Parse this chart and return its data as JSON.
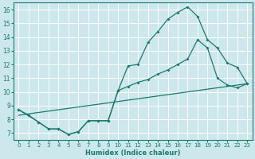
{
  "xlabel": "Humidex (Indice chaleur)",
  "bg_color": "#cce8ec",
  "grid_color": "#ffffff",
  "line_color": "#1a7a6e",
  "xlim": [
    -0.5,
    23.5
  ],
  "ylim": [
    6.5,
    16.5
  ],
  "xticks": [
    0,
    1,
    2,
    3,
    4,
    5,
    6,
    7,
    8,
    9,
    10,
    11,
    12,
    13,
    14,
    15,
    16,
    17,
    18,
    19,
    20,
    21,
    22,
    23
  ],
  "yticks": [
    7,
    8,
    9,
    10,
    11,
    12,
    13,
    14,
    15,
    16
  ],
  "line1_x": [
    0,
    1,
    2,
    3,
    4,
    5,
    6,
    7,
    8,
    9,
    10,
    11,
    12,
    13,
    14,
    15,
    16,
    17,
    18,
    19,
    20,
    21,
    22,
    23
  ],
  "line1_y": [
    8.7,
    8.3,
    7.8,
    7.3,
    7.3,
    6.9,
    7.1,
    7.9,
    7.9,
    7.9,
    10.1,
    11.9,
    12.0,
    13.6,
    14.4,
    15.3,
    15.8,
    16.2,
    15.5,
    13.8,
    13.2,
    12.1,
    11.8,
    10.6
  ],
  "line2_x": [
    0,
    2,
    3,
    4,
    5,
    6,
    7,
    8,
    9,
    10,
    11,
    12,
    13,
    14,
    15,
    16,
    17,
    18,
    19,
    20,
    21,
    22,
    23
  ],
  "line2_y": [
    8.7,
    7.8,
    7.3,
    7.3,
    6.9,
    7.1,
    7.9,
    7.9,
    7.9,
    10.1,
    10.4,
    10.7,
    10.9,
    11.3,
    11.6,
    12.0,
    12.4,
    13.8,
    13.2,
    11.0,
    10.5,
    10.3,
    10.6
  ],
  "line3_x": [
    0,
    23
  ],
  "line3_y": [
    8.3,
    10.6
  ]
}
